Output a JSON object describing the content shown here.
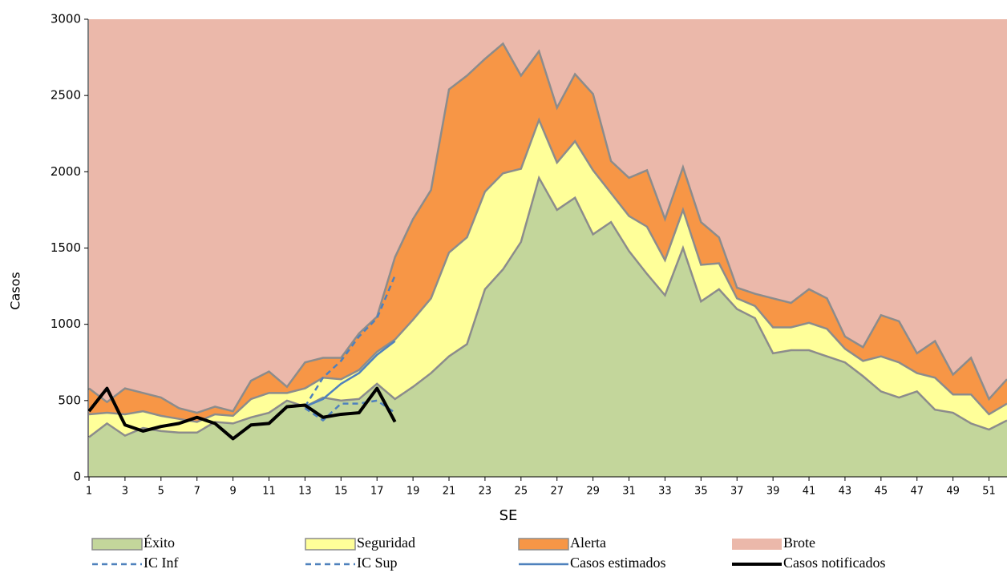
{
  "chart_data": {
    "type": "endemic-channel",
    "x_label": "SE",
    "y_label": "Casos",
    "x": [
      1,
      2,
      3,
      4,
      5,
      6,
      7,
      8,
      9,
      10,
      11,
      12,
      13,
      14,
      15,
      16,
      17,
      18,
      19,
      20,
      21,
      22,
      23,
      24,
      25,
      26,
      27,
      28,
      29,
      30,
      31,
      32,
      33,
      34,
      35,
      36,
      37,
      38,
      39,
      40,
      41,
      42,
      43,
      44,
      45,
      46,
      47,
      48,
      49,
      50,
      51,
      52
    ],
    "xlim": [
      1,
      52
    ],
    "xticks": [
      1,
      3,
      5,
      7,
      9,
      11,
      13,
      15,
      17,
      19,
      21,
      23,
      25,
      27,
      29,
      31,
      33,
      35,
      37,
      39,
      41,
      43,
      45,
      47,
      49,
      51
    ],
    "ylim": [
      0,
      3000
    ],
    "yticks": [
      0,
      500,
      1000,
      1500,
      2000,
      2500,
      3000
    ],
    "series": [
      {
        "name": "Éxito",
        "kind": "area",
        "color": "#c3d69b",
        "values": [
          260,
          350,
          270,
          320,
          300,
          290,
          290,
          360,
          350,
          390,
          420,
          500,
          460,
          520,
          500,
          510,
          610,
          510,
          590,
          680,
          790,
          870,
          1230,
          1360,
          1540,
          1960,
          1750,
          1830,
          1590,
          1670,
          1480,
          1330,
          1190,
          1500,
          1150,
          1230,
          1100,
          1040,
          810,
          830,
          830,
          790,
          750,
          660,
          560,
          520,
          560,
          440,
          420,
          350,
          310,
          370
        ]
      },
      {
        "name": "Seguridad",
        "kind": "area",
        "color": "#ffff99",
        "values": [
          410,
          420,
          410,
          430,
          400,
          380,
          360,
          410,
          400,
          510,
          550,
          550,
          580,
          650,
          640,
          700,
          820,
          900,
          1030,
          1170,
          1470,
          1570,
          1870,
          1990,
          2020,
          2340,
          2060,
          2200,
          2010,
          1860,
          1710,
          1640,
          1420,
          1750,
          1390,
          1400,
          1170,
          1120,
          980,
          980,
          1010,
          970,
          840,
          760,
          790,
          750,
          680,
          650,
          540,
          540,
          410,
          480
        ]
      },
      {
        "name": "Alerta",
        "kind": "area",
        "color": "#f79646",
        "values": [
          580,
          490,
          580,
          550,
          520,
          450,
          420,
          460,
          430,
          630,
          690,
          590,
          750,
          780,
          780,
          940,
          1050,
          1440,
          1690,
          1880,
          2540,
          2630,
          2740,
          2840,
          2630,
          2790,
          2420,
          2640,
          2510,
          2070,
          1960,
          2010,
          1690,
          2030,
          1670,
          1570,
          1240,
          1200,
          1170,
          1140,
          1230,
          1170,
          920,
          850,
          1060,
          1020,
          810,
          890,
          670,
          780,
          510,
          640
        ]
      },
      {
        "name": "Brote",
        "kind": "background",
        "color": "#ebb8aa"
      },
      {
        "name": "IC Inf",
        "kind": "line",
        "style": "dashed",
        "color": "#4f81bd",
        "values": [
          null,
          null,
          null,
          null,
          null,
          null,
          null,
          null,
          null,
          null,
          null,
          null,
          450,
          370,
          480,
          480,
          500,
          420,
          null,
          null,
          null,
          null,
          null,
          null,
          null,
          null,
          null,
          null,
          null,
          null,
          null,
          null,
          null,
          null,
          null,
          null,
          null,
          null,
          null,
          null,
          null,
          null,
          null,
          null,
          null,
          null,
          null,
          null,
          null,
          null,
          null,
          null
        ]
      },
      {
        "name": "IC Sup",
        "kind": "line",
        "style": "dashed",
        "color": "#4f81bd",
        "values": [
          null,
          null,
          null,
          null,
          null,
          null,
          null,
          null,
          null,
          null,
          null,
          null,
          460,
          650,
          760,
          920,
          1040,
          1320,
          null,
          null,
          null,
          null,
          null,
          null,
          null,
          null,
          null,
          null,
          null,
          null,
          null,
          null,
          null,
          null,
          null,
          null,
          null,
          null,
          null,
          null,
          null,
          null,
          null,
          null,
          null,
          null,
          null,
          null,
          null,
          null,
          null,
          null
        ]
      },
      {
        "name": "Casos estimados",
        "kind": "line",
        "style": "solid",
        "color": "#4f81bd",
        "values": [
          null,
          null,
          null,
          null,
          null,
          null,
          null,
          null,
          null,
          null,
          null,
          null,
          460,
          510,
          610,
          680,
          800,
          890,
          null,
          null,
          null,
          null,
          null,
          null,
          null,
          null,
          null,
          null,
          null,
          null,
          null,
          null,
          null,
          null,
          null,
          null,
          null,
          null,
          null,
          null,
          null,
          null,
          null,
          null,
          null,
          null,
          null,
          null,
          null,
          null,
          null,
          null
        ]
      },
      {
        "name": "Casos notificados",
        "kind": "line",
        "style": "bold",
        "color": "#000000",
        "values": [
          430,
          580,
          340,
          300,
          330,
          350,
          390,
          350,
          250,
          340,
          350,
          460,
          470,
          390,
          410,
          420,
          580,
          360,
          null,
          null,
          null,
          null,
          null,
          null,
          null,
          null,
          null,
          null,
          null,
          null,
          null,
          null,
          null,
          null,
          null,
          null,
          null,
          null,
          null,
          null,
          null,
          null,
          null,
          null,
          null,
          null,
          null,
          null,
          null,
          null,
          null,
          null
        ]
      }
    ]
  }
}
